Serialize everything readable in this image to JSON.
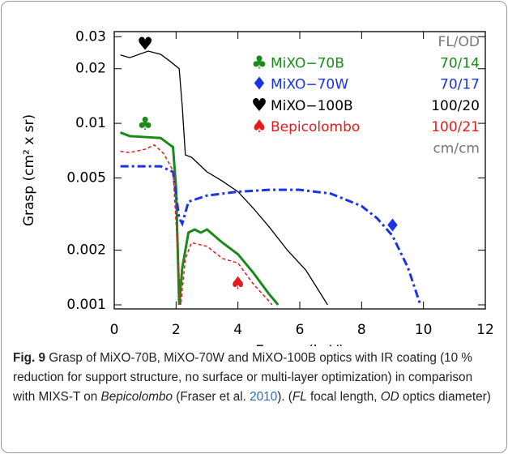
{
  "chart_data": {
    "type": "line",
    "xlabel": "Energy (keV)",
    "ylabel": "Grasp (cm² x sr)",
    "xlim": [
      0,
      12
    ],
    "ylim": [
      0.00095,
      0.032
    ],
    "log_y": true,
    "xticks": [
      0,
      2,
      4,
      6,
      8,
      10,
      12
    ],
    "yticks": [
      0.001,
      0.002,
      0.005,
      0.01,
      0.02,
      0.03
    ],
    "legend_header": "FL/OD",
    "legend_footer": "cm/cm",
    "series": [
      {
        "name": "MiXO−70B",
        "fl_od": "70/14",
        "color": "#1a8a1a",
        "style": "solid",
        "width": 3,
        "marker": "♣",
        "marker_at": [
          1,
          0.0098
        ],
        "x": [
          0.2,
          0.5,
          1.0,
          1.5,
          1.9,
          2.0,
          2.1,
          2.2,
          2.4,
          2.6,
          2.8,
          3.0,
          3.5,
          4.0,
          4.5,
          5.0,
          5.3
        ],
        "values": [
          0.0089,
          0.0085,
          0.0084,
          0.0083,
          0.0074,
          0.0044,
          0.001,
          0.0016,
          0.0025,
          0.0026,
          0.0025,
          0.0026,
          0.0022,
          0.0019,
          0.0015,
          0.00115,
          0.001
        ]
      },
      {
        "name": "MiXO−70W",
        "fl_od": "70/17",
        "color": "#1a33e6",
        "style": "dashdot",
        "width": 3,
        "marker": "♦",
        "marker_at": [
          9,
          0.0027
        ],
        "x": [
          0.2,
          1.0,
          1.5,
          1.9,
          2.1,
          2.2,
          2.4,
          3.0,
          4.0,
          5.0,
          6.0,
          7.0,
          8.0,
          8.5,
          9.0,
          9.5,
          9.9
        ],
        "values": [
          0.0058,
          0.0058,
          0.0058,
          0.0054,
          0.003,
          0.0028,
          0.0037,
          0.004,
          0.0042,
          0.0043,
          0.0043,
          0.0041,
          0.0035,
          0.003,
          0.0024,
          0.0016,
          0.001
        ]
      },
      {
        "name": "MiXO−100B",
        "fl_od": "100/20",
        "color": "#000000",
        "style": "solid",
        "width": 1.3,
        "marker": "♥",
        "marker_at": [
          1,
          0.027
        ],
        "x": [
          0.2,
          0.5,
          1.1,
          1.5,
          1.8,
          2.1,
          2.2,
          2.3,
          2.5,
          3.0,
          3.5,
          4.0,
          4.5,
          5.0,
          5.6,
          6.2,
          6.9
        ],
        "values": [
          0.0238,
          0.023,
          0.025,
          0.024,
          0.022,
          0.02,
          0.0124,
          0.0067,
          0.0065,
          0.0054,
          0.0048,
          0.0042,
          0.0034,
          0.0027,
          0.002,
          0.00155,
          0.001
        ]
      },
      {
        "name": "Bepicolombo",
        "fl_od": "100/21",
        "color": "#e61a1a",
        "style": "dashed",
        "width": 1.5,
        "marker": "♠",
        "marker_at": [
          4,
          0.0013
        ],
        "x": [
          0.2,
          0.5,
          1.0,
          1.3,
          1.6,
          1.9,
          2.05,
          2.15,
          2.3,
          2.5,
          3.0,
          3.5,
          4.0,
          4.5,
          5.0,
          5.1
        ],
        "values": [
          0.007,
          0.0069,
          0.0072,
          0.0076,
          0.0068,
          0.0055,
          0.002,
          0.001,
          0.0018,
          0.0022,
          0.0021,
          0.0018,
          0.0017,
          0.0013,
          0.00105,
          0.001
        ]
      }
    ],
    "caption": [
      "Fig. 9",
      " Grasp of MiXO-70B, MiXO-70W and MiXO-100B optics with IR coating (10 % reduction for support structure, no surface or multi-layer optimization) in comparison with MIXS-T on ",
      "Bepicolombo",
      " (Fraser et al. ",
      "2010",
      "). (",
      "FL",
      " focal length, ",
      "OD",
      " optics diameter)"
    ]
  }
}
